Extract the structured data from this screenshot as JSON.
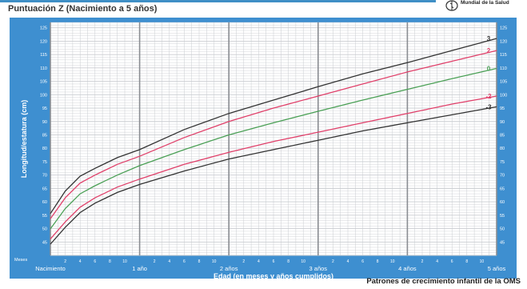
{
  "header": {
    "title": "Puntuación Z (Nacimiento a 5 años)",
    "org_line2": "Mundial de la Salud"
  },
  "footer": {
    "source": "Patrones de crecimiento infantil de la OMS"
  },
  "colors": {
    "panel_bg": "#3e8fd0",
    "plot_bg": "#ffffff",
    "grid": "#c9ccd0",
    "year_line": "#8a8d92",
    "axis_text": "#ffffff",
    "z_outer": "#333333",
    "z_2": "#e0406a",
    "z_0": "#4ba056"
  },
  "chart_data": {
    "type": "line",
    "title": "Puntuación Z (Nacimiento a 5 años)",
    "xlabel": "Edad (en meses y años cumplidos)",
    "ylabel": "Longitud/estatura (cm)",
    "x_units": "meses",
    "xlim": [
      0,
      60
    ],
    "ylim": [
      40,
      127
    ],
    "y_ticks": [
      45,
      50,
      55,
      60,
      65,
      70,
      75,
      80,
      85,
      90,
      95,
      100,
      105,
      110,
      115,
      120,
      125
    ],
    "x_prefix_label": "Meses",
    "x_major_labels": [
      {
        "month": 0,
        "label": "Nacimiento"
      },
      {
        "month": 12,
        "label": "1 año"
      },
      {
        "month": 24,
        "label": "2 años"
      },
      {
        "month": 36,
        "label": "3 años"
      },
      {
        "month": 48,
        "label": "4 años"
      },
      {
        "month": 60,
        "label": "5 años"
      }
    ],
    "x_minor_labels": [
      "2",
      "4",
      "6",
      "8",
      "10"
    ],
    "grid": true,
    "x": [
      0,
      2,
      4,
      6,
      9,
      12,
      18,
      24,
      30,
      36,
      42,
      48,
      54,
      60
    ],
    "series": [
      {
        "name": "3",
        "color": "#333333",
        "values": [
          55.6,
          64.0,
          69.6,
          72.5,
          76.5,
          79.5,
          87.0,
          93.0,
          98.0,
          103.0,
          107.8,
          112.0,
          116.5,
          121.0
        ]
      },
      {
        "name": "2",
        "color": "#e0406a",
        "values": [
          53.7,
          61.5,
          67.0,
          70.0,
          74.0,
          77.0,
          84.0,
          90.0,
          95.0,
          99.5,
          104.0,
          108.5,
          112.5,
          116.5
        ]
      },
      {
        "name": "0",
        "color": "#4ba056",
        "values": [
          49.9,
          57.5,
          63.0,
          66.0,
          70.0,
          73.5,
          79.5,
          85.0,
          89.5,
          93.8,
          98.0,
          102.0,
          106.0,
          109.8
        ]
      },
      {
        "name": "-2",
        "color": "#e0406a",
        "values": [
          46.1,
          52.5,
          58.0,
          61.5,
          65.5,
          68.5,
          74.0,
          78.5,
          82.5,
          86.0,
          89.5,
          93.0,
          96.5,
          99.5
        ]
      },
      {
        "name": "-3",
        "color": "#333333",
        "values": [
          44.2,
          50.5,
          56.0,
          59.5,
          63.5,
          66.5,
          71.5,
          76.0,
          79.5,
          83.0,
          86.5,
          89.5,
          92.5,
          95.5
        ]
      }
    ]
  }
}
